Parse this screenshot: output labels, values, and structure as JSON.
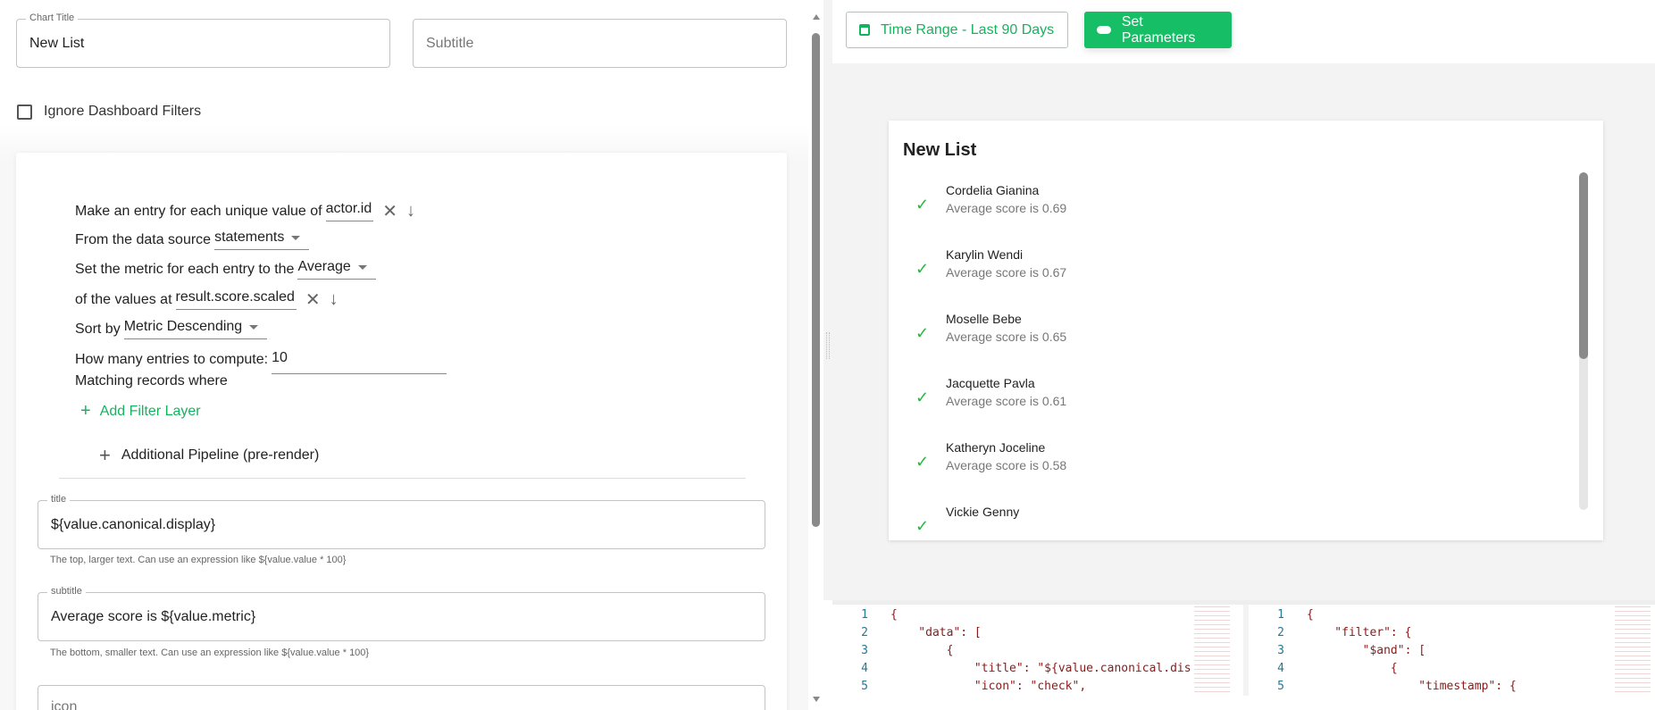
{
  "editor": {
    "chart_title_label": "Chart Title",
    "chart_title_value": "New List",
    "subtitle_placeholder": "Subtitle",
    "ignore_filters_label": "Ignore Dashboard Filters",
    "ignore_filters_checked": false,
    "query": {
      "entry_prefix": "Make an entry for each unique value of",
      "entry_value": "actor.id",
      "source_prefix": "From the data source",
      "source_value": "statements",
      "metric_prefix": "Set the metric for each entry to the",
      "metric_value": "Average",
      "values_prefix": "of the values at",
      "values_value": "result.score.scaled",
      "sort_prefix": "Sort by",
      "sort_value": "Metric Descending",
      "count_prefix": "How many entries to compute:",
      "count_value": "10",
      "matching_label": "Matching records where",
      "add_filter_label": "Add Filter Layer",
      "pipeline_label": "Additional Pipeline (pre-render)"
    },
    "title_field": {
      "label": "title",
      "value": "${value.canonical.display}",
      "help": "The top, larger text. Can use an expression like ${value.value * 100}"
    },
    "subtitle_field": {
      "label": "subtitle",
      "value": "Average score is ${value.metric}",
      "help": "The bottom, smaller text. Can use an expression like ${value.value * 100}"
    },
    "icon_field": {
      "label": "icon"
    }
  },
  "toolbar": {
    "time_range_label": "Time Range - Last 90 Days",
    "set_parameters_label": "Set Parameters",
    "accent": "#16b35f"
  },
  "preview": {
    "title": "New List",
    "items": [
      {
        "title": "Cordelia Gianina",
        "subtitle": "Average score is 0.69",
        "icon": "check"
      },
      {
        "title": "Karylin Wendi",
        "subtitle": "Average score is 0.67",
        "icon": "check"
      },
      {
        "title": "Moselle Bebe",
        "subtitle": "Average score is 0.65",
        "icon": "check"
      },
      {
        "title": "Jacquette Pavla",
        "subtitle": "Average score is 0.61",
        "icon": "check"
      },
      {
        "title": "Katheryn Joceline",
        "subtitle": "Average score is 0.58",
        "icon": "check"
      },
      {
        "title": "Vickie Genny",
        "subtitle": "",
        "icon": "check"
      }
    ]
  },
  "code_left": [
    {
      "n": "1",
      "text": "{"
    },
    {
      "n": "2",
      "text": "    \"data\": ["
    },
    {
      "n": "3",
      "text": "        {"
    },
    {
      "n": "4",
      "text": "            \"title\": \"${value.canonical.dis"
    },
    {
      "n": "5",
      "text": "            \"icon\": \"check\","
    }
  ],
  "code_right": [
    {
      "n": "1",
      "text": "{"
    },
    {
      "n": "2",
      "text": "    \"filter\": {"
    },
    {
      "n": "3",
      "text": "        \"$and\": ["
    },
    {
      "n": "4",
      "text": "            {"
    },
    {
      "n": "5",
      "text": "                \"timestamp\": {"
    }
  ]
}
